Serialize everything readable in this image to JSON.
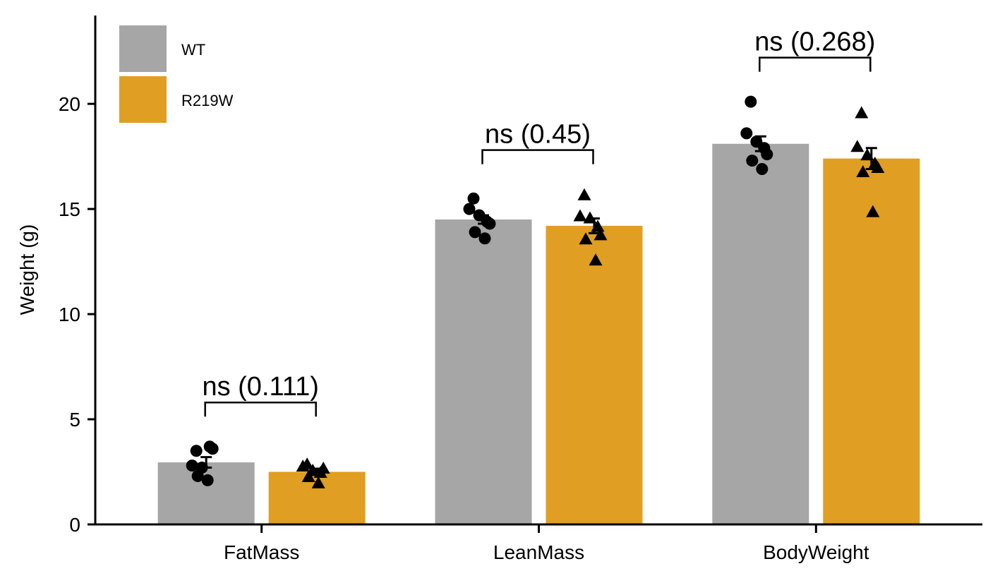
{
  "chart_data": {
    "type": "bar",
    "title": "",
    "xlabel": "",
    "ylabel": "Weight (g)",
    "ylim": [
      0,
      24.2
    ],
    "yticks": [
      0,
      5,
      10,
      15,
      20
    ],
    "grid": false,
    "legend_position": "top-left",
    "categories": [
      "FatMass",
      "LeanMass",
      "BodyWeight"
    ],
    "series": [
      {
        "name": "WT",
        "color": "#A6A6A6",
        "marker": "circle",
        "values": [
          2.95,
          14.5,
          18.1
        ],
        "error": [
          0.25,
          0.2,
          0.35
        ],
        "points": [
          [
            3.5,
            2.8,
            2.7,
            3.7,
            3.6,
            2.3,
            2.1
          ],
          [
            15.5,
            15.0,
            14.7,
            14.4,
            14.3,
            13.9,
            13.6
          ],
          [
            20.1,
            18.6,
            18.2,
            17.9,
            17.6,
            17.3,
            16.9
          ]
        ]
      },
      {
        "name": "R219W",
        "color": "#E09E23",
        "marker": "triangle",
        "values": [
          2.5,
          14.2,
          17.4
        ],
        "error": [
          0.15,
          0.35,
          0.5
        ],
        "points": [
          [
            2.9,
            2.8,
            2.6,
            2.5,
            2.7,
            2.3,
            2.0
          ],
          [
            15.7,
            14.7,
            14.6,
            14.2,
            13.8,
            13.6,
            12.6
          ],
          [
            19.6,
            18.0,
            17.6,
            17.2,
            17.0,
            16.8,
            14.9
          ]
        ]
      }
    ],
    "annotations": [
      {
        "category": "FatMass",
        "text": "ns (0.111)",
        "y": 5.8
      },
      {
        "category": "LeanMass",
        "text": "ns (0.45)",
        "y": 17.8
      },
      {
        "category": "BodyWeight",
        "text": "ns (0.268)",
        "y": 22.2
      }
    ]
  }
}
